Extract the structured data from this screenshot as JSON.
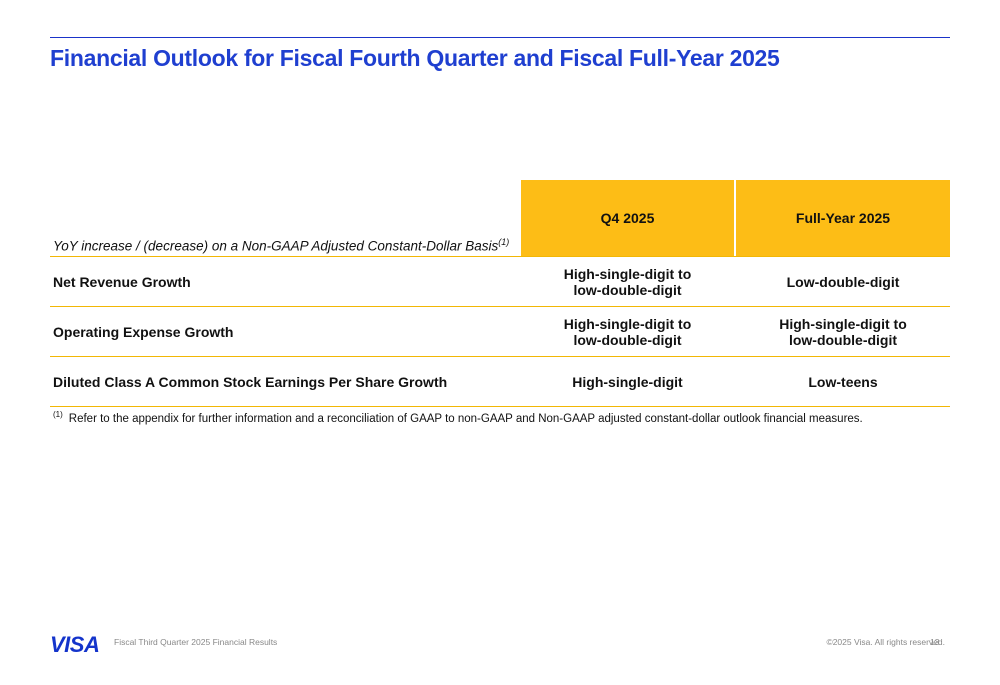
{
  "title": "Financial Outlook for Fiscal Fourth Quarter and Fiscal Full-Year 2025",
  "table": {
    "basis_label": "YoY increase / (decrease) on a Non-GAAP Adjusted Constant-Dollar Basis",
    "basis_footnote_marker": "(1)",
    "columns": [
      "Q4 2025",
      "Full-Year 2025"
    ],
    "rows": [
      {
        "label": "Net Revenue Growth",
        "q4": "High-single-digit to low-double-digit",
        "fy": "Low-double-digit"
      },
      {
        "label": "Operating Expense Growth",
        "q4": "High-single-digit to low-double-digit",
        "fy": "High-single-digit to low-double-digit"
      },
      {
        "label": "Diluted Class A Common Stock Earnings Per Share Growth",
        "q4": "High-single-digit",
        "fy": "Low-teens"
      }
    ]
  },
  "footnote": {
    "marker": "(1)",
    "text": "Refer to the appendix for further information and a reconciliation of GAAP to non-GAAP and Non-GAAP adjusted constant-dollar outlook financial measures."
  },
  "footer": {
    "logo": "VISA",
    "left_text": "Fiscal Third Quarter 2025 Financial Results",
    "copyright": "©2025 Visa. All rights reserved.",
    "page_number": "13"
  },
  "colors": {
    "title_blue": "#1f3fd0",
    "header_gold": "#fdbd16",
    "divider_gold": "#f2b705",
    "logo_blue": "#1434cb"
  }
}
